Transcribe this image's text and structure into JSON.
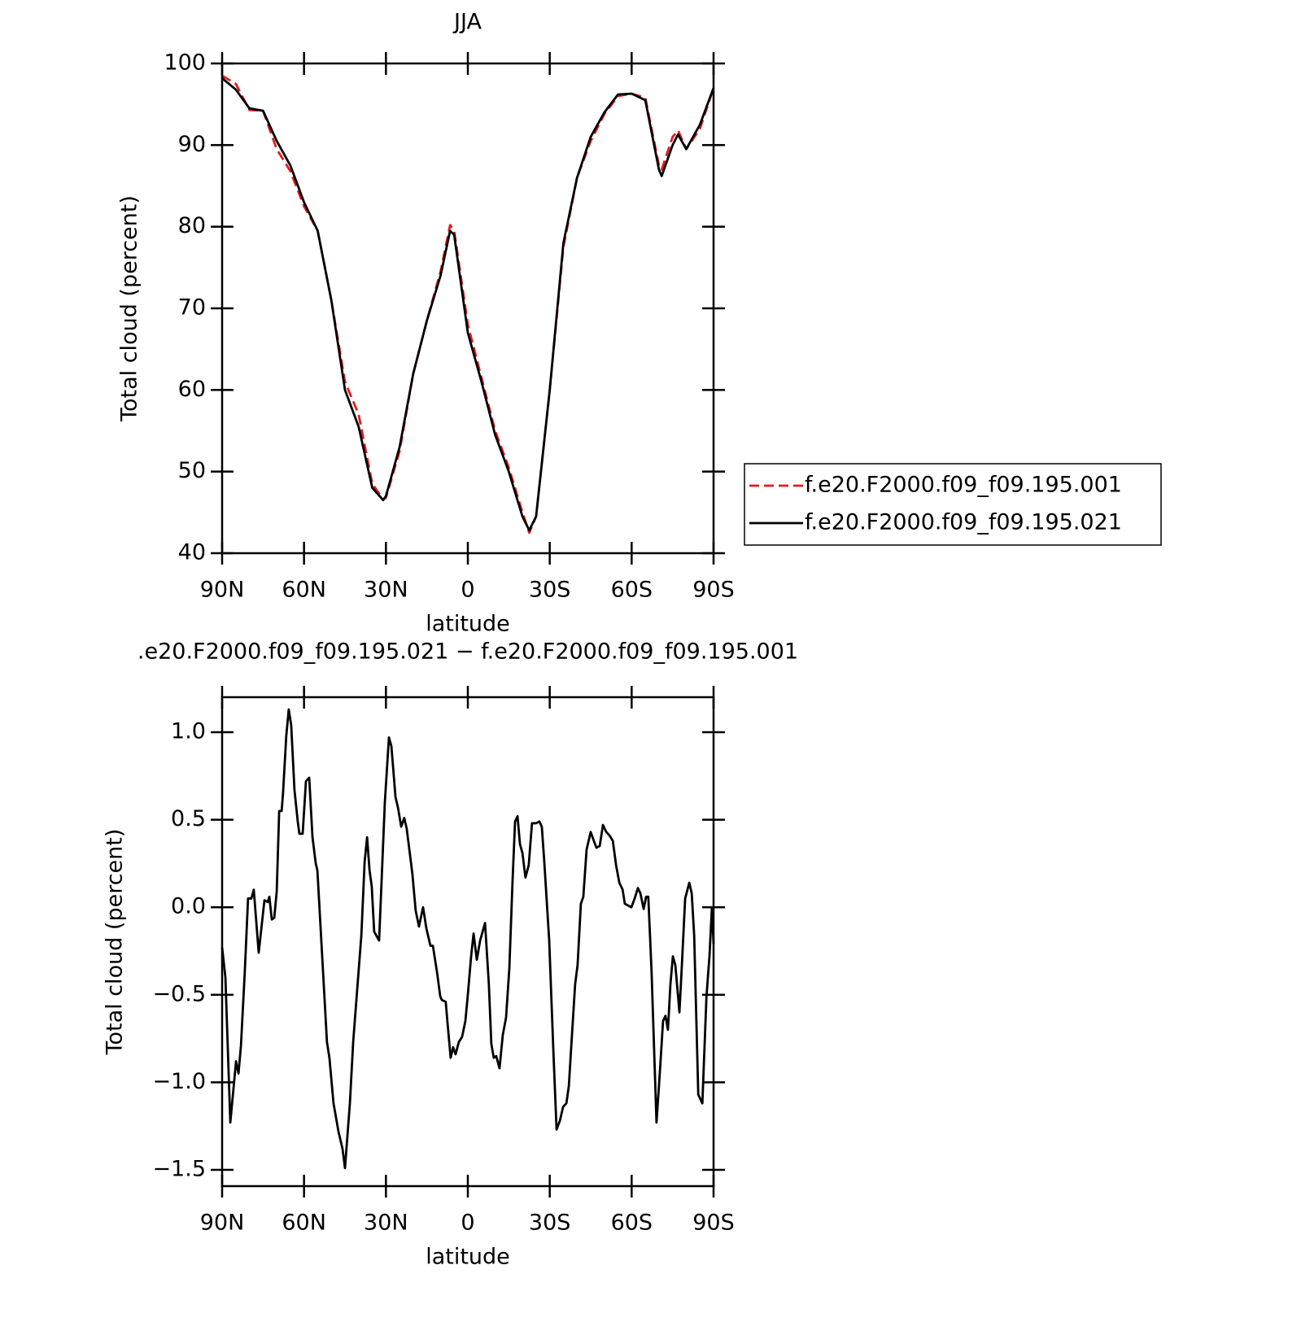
{
  "chart_data": [
    {
      "type": "line",
      "title": "JJA",
      "xlabel": "latitude",
      "ylabel": "Total cloud (percent)",
      "x": [
        90,
        85,
        80,
        75,
        70,
        65,
        60,
        55,
        50,
        45,
        40,
        35,
        31,
        30,
        25,
        20,
        15,
        10,
        6.5,
        5,
        0,
        -5,
        -10,
        -15,
        -20,
        -22.5,
        -25,
        -30,
        -35,
        -40,
        -45,
        -50,
        -55,
        -60,
        -65,
        -70,
        -71,
        -75,
        -77,
        -80,
        -85,
        -90
      ],
      "series": [
        {
          "name": "f.e20.F2000.f09_f09.195.001",
          "color": "#e41a1c",
          "dashed": true,
          "values": [
            98.5,
            97.5,
            94.3,
            94.2,
            89.5,
            86.8,
            82.5,
            79.5,
            71,
            61,
            57,
            48.5,
            46.6,
            46.8,
            52.5,
            62,
            68.5,
            74.5,
            80.2,
            79.5,
            68,
            61.5,
            55,
            50.5,
            45,
            42.5,
            44.5,
            60,
            77.5,
            86,
            90.5,
            93.8,
            96,
            96.3,
            95.8,
            87.5,
            87,
            91,
            91.8,
            89.5,
            92,
            97
          ]
        },
        {
          "name": "f.e20.F2000.f09_f09.195.021",
          "color": "#000000",
          "dashed": false,
          "values": [
            98.2,
            96.8,
            94.5,
            94.2,
            90.5,
            87.5,
            83,
            79.5,
            71,
            60,
            55.5,
            48,
            46.5,
            47,
            53,
            62,
            68.5,
            74,
            79.5,
            79,
            67,
            61,
            54.5,
            50,
            44.5,
            42.8,
            44.5,
            60,
            78,
            86,
            91,
            94,
            96.2,
            96.3,
            95.5,
            87,
            86.2,
            90,
            91.3,
            89.5,
            92.5,
            97
          ]
        }
      ],
      "xlim": [
        90,
        -90
      ],
      "xticks": [
        {
          "value": 90,
          "label": "90N"
        },
        {
          "value": 60,
          "label": "60N"
        },
        {
          "value": 30,
          "label": "30N"
        },
        0,
        {
          "value": -30,
          "label": "30S"
        },
        {
          "value": -60,
          "label": "60S"
        },
        {
          "value": -90,
          "label": "90S"
        }
      ],
      "ylim": [
        40,
        100
      ],
      "yticks": [
        40,
        50,
        60,
        70,
        80,
        90,
        100
      ],
      "legend": "right"
    },
    {
      "type": "line",
      "title": ".e20.F2000.f09_f09.195.021 − f.e20.F2000.f09_f09.195.001",
      "xlabel": "latitude",
      "ylabel": "Total cloud (percent)",
      "x": [
        90,
        88.8,
        87,
        84.9,
        84,
        83.1,
        81.7,
        80.5,
        79.3,
        78.4,
        76.6,
        74.5,
        73.3,
        72.7,
        71.8,
        70.9,
        70,
        69.1,
        68.2,
        67.7,
        66.5,
        65.6,
        64.7,
        63.5,
        62.3,
        61.7,
        60.5,
        59.3,
        58.1,
        56.9,
        55.7,
        55.1,
        51.6,
        50.7,
        49.2,
        47.4,
        45.9,
        45,
        43.2,
        42,
        39,
        37.8,
        36.9,
        36,
        35.2,
        34.3,
        32.5,
        31.3,
        30.4,
        28.9,
        28,
        26.5,
        25.6,
        24.4,
        23.3,
        22.4,
        20.3,
        19.1,
        17.9,
        16.4,
        15.2,
        13.7,
        12.8,
        11.3,
        10.1,
        9.5,
        8.1,
        7.5,
        6.3,
        5.4,
        4.5,
        3.3,
        2.1,
        0.9,
        0,
        -1.2,
        -2.1,
        -3.3,
        -4.5,
        -6.3,
        -7.7,
        -8.6,
        -9.5,
        -10.4,
        -11.6,
        -12.8,
        -14,
        -15.2,
        -16.4,
        -17.3,
        -18.2,
        -19.1,
        -20,
        -21.1,
        -22.3,
        -23.5,
        -25,
        -26.2,
        -27.1,
        -28,
        -29.8,
        -31.3,
        -32.5,
        -33.7,
        -34.9,
        -36.1,
        -37,
        -37.9,
        -39.3,
        -40.2,
        -41.4,
        -42.3,
        -43.5,
        -45,
        -45.9,
        -47.1,
        -48.3,
        -49.5,
        -50.7,
        -51.9,
        -53.1,
        -54.3,
        -55.5,
        -56.7,
        -57.5,
        -58.7,
        -59.9,
        -61.1,
        -62.3,
        -63.2,
        -64.4,
        -65.3,
        -66.1,
        -67.3,
        -69.1,
        -70.3,
        -71.5,
        -72.4,
        -73.3,
        -74.2,
        -75.1,
        -76,
        -77.5,
        -78.4,
        -79.6,
        -81.1,
        -82,
        -82.9,
        -84.4,
        -85.9,
        -87.4,
        -88.5,
        -89.4,
        -90
      ],
      "series": [
        {
          "color": "#000000",
          "dashed": false,
          "values": [
            -0.23,
            -0.4,
            -1.23,
            -0.88,
            -0.95,
            -0.79,
            -0.37,
            0.05,
            0.05,
            0.1,
            -0.26,
            0.04,
            0.03,
            0.06,
            -0.07,
            -0.06,
            0.09,
            0.55,
            0.55,
            0.65,
            0.98,
            1.13,
            1.04,
            0.67,
            0.49,
            0.42,
            0.42,
            0.72,
            0.74,
            0.4,
            0.25,
            0.21,
            -0.77,
            -0.86,
            -1.12,
            -1.28,
            -1.38,
            -1.49,
            -1.12,
            -0.77,
            -0.16,
            0.26,
            0.4,
            0.21,
            0.12,
            -0.14,
            -0.19,
            0.26,
            0.6,
            0.97,
            0.92,
            0.63,
            0.57,
            0.46,
            0.51,
            0.45,
            0.19,
            -0.02,
            -0.11,
            0,
            -0.12,
            -0.22,
            -0.22,
            -0.37,
            -0.51,
            -0.53,
            -0.54,
            -0.65,
            -0.86,
            -0.8,
            -0.84,
            -0.77,
            -0.74,
            -0.65,
            -0.5,
            -0.28,
            -0.15,
            -0.3,
            -0.19,
            -0.09,
            -0.44,
            -0.78,
            -0.86,
            -0.85,
            -0.92,
            -0.73,
            -0.63,
            -0.35,
            0.16,
            0.49,
            0.52,
            0.36,
            0.31,
            0.17,
            0.24,
            0.48,
            0.48,
            0.49,
            0.46,
            0.26,
            -0.19,
            -0.81,
            -1.27,
            -1.22,
            -1.14,
            -1.12,
            -1.02,
            -0.79,
            -0.44,
            -0.33,
            0.02,
            0.06,
            0.33,
            0.43,
            0.39,
            0.34,
            0.35,
            0.47,
            0.43,
            0.41,
            0.38,
            0.24,
            0.14,
            0.1,
            0.02,
            0.01,
            0,
            0.05,
            0.11,
            0.08,
            -0.01,
            0.06,
            0.06,
            -0.37,
            -1.23,
            -0.95,
            -0.65,
            -0.62,
            -0.7,
            -0.44,
            -0.28,
            -0.33,
            -0.6,
            -0.33,
            0.05,
            0.14,
            0.08,
            -0.16,
            -1.07,
            -1.12,
            -0.51,
            -0.28,
            0,
            -0.21
          ]
        }
      ],
      "xlim": [
        90,
        -90
      ],
      "xticks": [
        {
          "value": 90,
          "label": "90N"
        },
        {
          "value": 60,
          "label": "60N"
        },
        {
          "value": 30,
          "label": "30N"
        },
        0,
        {
          "value": -30,
          "label": "30S"
        },
        {
          "value": -60,
          "label": "60S"
        },
        {
          "value": -90,
          "label": "90S"
        }
      ],
      "ylim": [
        -1.593,
        1.2
      ],
      "yticks": [
        {
          "value": -1.5,
          "label": "−1.5"
        },
        {
          "value": -1,
          "label": "−1.0"
        },
        {
          "value": -0.5,
          "label": "−0.5"
        },
        {
          "value": 0,
          "label": "0.0"
        },
        {
          "value": 0.5,
          "label": "0.5"
        },
        {
          "value": 1,
          "label": "1.0"
        }
      ]
    }
  ]
}
